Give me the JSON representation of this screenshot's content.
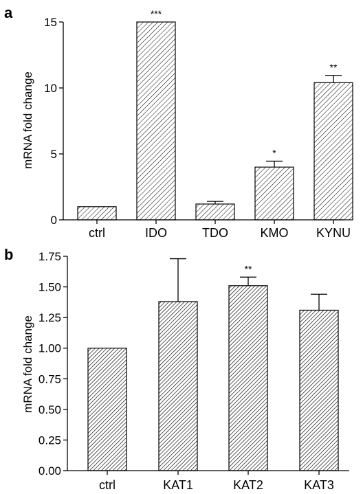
{
  "chart_data": [
    {
      "panel": "a",
      "type": "bar",
      "ylabel": "mRNA fold change",
      "ylim": [
        0,
        15
      ],
      "yticks": [
        "0",
        "5",
        "10",
        "15"
      ],
      "categories": [
        "ctrl",
        "IDO",
        "TDO",
        "KMO",
        "KYNU"
      ],
      "values": [
        1.0,
        15.0,
        1.2,
        4.0,
        10.4
      ],
      "errors": [
        0,
        0,
        0.2,
        0.45,
        0.55
      ],
      "significance": [
        "",
        "***",
        "",
        "*",
        "**"
      ]
    },
    {
      "panel": "b",
      "type": "bar",
      "ylabel": "mRNA fold change",
      "ylim": [
        0,
        1.75
      ],
      "yticks": [
        "0.00",
        "0.25",
        "0.50",
        "0.75",
        "1.00",
        "1.25",
        "1.50",
        "1.75"
      ],
      "categories": [
        "ctrl",
        "KAT1",
        "KAT2",
        "KAT3"
      ],
      "values": [
        1.0,
        1.38,
        1.51,
        1.31
      ],
      "errors": [
        0,
        0.35,
        0.07,
        0.13
      ],
      "significance": [
        "",
        "",
        "**",
        ""
      ]
    }
  ]
}
